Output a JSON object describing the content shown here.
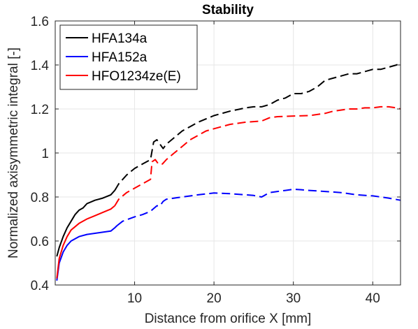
{
  "chart_data": {
    "type": "line",
    "title": "Stability",
    "xlabel": "Distance from orifice X [mm]",
    "ylabel": "Normalized axisymmetric integral [-]",
    "xlim": [
      0,
      43.5
    ],
    "ylim": [
      0.4,
      1.6
    ],
    "xticks": [
      10,
      20,
      30,
      40
    ],
    "yticks": [
      0.4,
      0.6,
      0.8,
      1,
      1.2,
      1.4,
      1.6
    ],
    "xtick_labels": [
      "10",
      "20",
      "30",
      "40"
    ],
    "ytick_labels": [
      "0.4",
      "0.6",
      "0.8",
      "1",
      "1.2",
      "1.4",
      "1.6"
    ],
    "grid": true,
    "legend_position": "top-left",
    "series": [
      {
        "name": "HFA134a",
        "color": "#000000",
        "solid": [
          [
            0.2,
            0.53
          ],
          [
            0.5,
            0.57
          ],
          [
            1,
            0.62
          ],
          [
            1.5,
            0.66
          ],
          [
            2,
            0.69
          ],
          [
            2.5,
            0.72
          ],
          [
            3,
            0.74
          ],
          [
            3.5,
            0.75
          ],
          [
            4,
            0.77
          ],
          [
            5,
            0.785
          ],
          [
            6,
            0.795
          ],
          [
            7,
            0.81
          ],
          [
            7.5,
            0.83
          ]
        ],
        "dashed": [
          [
            7.5,
            0.83
          ],
          [
            8,
            0.86
          ],
          [
            9,
            0.9
          ],
          [
            10,
            0.93
          ],
          [
            11,
            0.95
          ],
          [
            12,
            0.97
          ],
          [
            12.4,
            1.05
          ],
          [
            12.8,
            1.06
          ],
          [
            13.2,
            1.04
          ],
          [
            13.6,
            1.02
          ],
          [
            14,
            1.04
          ],
          [
            15,
            1.07
          ],
          [
            16,
            1.1
          ],
          [
            17,
            1.12
          ],
          [
            18,
            1.14
          ],
          [
            20,
            1.17
          ],
          [
            22,
            1.19
          ],
          [
            24,
            1.205
          ],
          [
            25,
            1.21
          ],
          [
            26,
            1.21
          ],
          [
            27,
            1.22
          ],
          [
            28,
            1.24
          ],
          [
            29,
            1.25
          ],
          [
            30,
            1.27
          ],
          [
            31,
            1.27
          ],
          [
            32,
            1.28
          ],
          [
            33,
            1.3
          ],
          [
            34,
            1.33
          ],
          [
            35,
            1.34
          ],
          [
            36,
            1.35
          ],
          [
            37,
            1.36
          ],
          [
            38,
            1.36
          ],
          [
            39,
            1.37
          ],
          [
            40,
            1.38
          ],
          [
            41,
            1.38
          ],
          [
            42,
            1.39
          ],
          [
            43,
            1.4
          ],
          [
            43.5,
            1.41
          ]
        ]
      },
      {
        "name": "HFA152a",
        "color": "#0000ff",
        "solid": [
          [
            0.2,
            0.42
          ],
          [
            0.5,
            0.5
          ],
          [
            1,
            0.55
          ],
          [
            1.5,
            0.58
          ],
          [
            2,
            0.6
          ],
          [
            3,
            0.62
          ],
          [
            4,
            0.63
          ],
          [
            5,
            0.635
          ],
          [
            6,
            0.64
          ],
          [
            7,
            0.645
          ],
          [
            7.5,
            0.66
          ],
          [
            7.8,
            0.67
          ]
        ],
        "dashed": [
          [
            7.8,
            0.67
          ],
          [
            8.5,
            0.69
          ],
          [
            10,
            0.71
          ],
          [
            11,
            0.72
          ],
          [
            12,
            0.735
          ],
          [
            12.8,
            0.76
          ],
          [
            13.2,
            0.76
          ],
          [
            13.6,
            0.78
          ],
          [
            14,
            0.79
          ],
          [
            15,
            0.795
          ],
          [
            16,
            0.8
          ],
          [
            18,
            0.81
          ],
          [
            20,
            0.818
          ],
          [
            22,
            0.815
          ],
          [
            24,
            0.81
          ],
          [
            25,
            0.807
          ],
          [
            26,
            0.8
          ],
          [
            27,
            0.82
          ],
          [
            28,
            0.825
          ],
          [
            29,
            0.83
          ],
          [
            30,
            0.835
          ],
          [
            31,
            0.833
          ],
          [
            32,
            0.83
          ],
          [
            34,
            0.825
          ],
          [
            36,
            0.82
          ],
          [
            38,
            0.81
          ],
          [
            40,
            0.805
          ],
          [
            42,
            0.795
          ],
          [
            43.5,
            0.785
          ]
        ]
      },
      {
        "name": "HFO1234ze(E)",
        "color": "#ff0000",
        "solid": [
          [
            0.2,
            0.43
          ],
          [
            0.5,
            0.52
          ],
          [
            1,
            0.58
          ],
          [
            1.5,
            0.62
          ],
          [
            2,
            0.65
          ],
          [
            3,
            0.68
          ],
          [
            4,
            0.7
          ],
          [
            5,
            0.715
          ],
          [
            6,
            0.73
          ],
          [
            7,
            0.745
          ],
          [
            7.5,
            0.76
          ]
        ],
        "dashed": [
          [
            7.5,
            0.76
          ],
          [
            8,
            0.79
          ],
          [
            9,
            0.82
          ],
          [
            10,
            0.84
          ],
          [
            11,
            0.86
          ],
          [
            12,
            0.88
          ],
          [
            12.2,
            0.96
          ],
          [
            12.6,
            0.97
          ],
          [
            13,
            0.95
          ],
          [
            13.5,
            0.95
          ],
          [
            14,
            0.97
          ],
          [
            15,
            1.0
          ],
          [
            16,
            1.03
          ],
          [
            17,
            1.06
          ],
          [
            18,
            1.08
          ],
          [
            19,
            1.1
          ],
          [
            20,
            1.11
          ],
          [
            21,
            1.12
          ],
          [
            22,
            1.13
          ],
          [
            24,
            1.14
          ],
          [
            26,
            1.145
          ],
          [
            27,
            1.16
          ],
          [
            28,
            1.165
          ],
          [
            30,
            1.168
          ],
          [
            32,
            1.17
          ],
          [
            34,
            1.18
          ],
          [
            35,
            1.19
          ],
          [
            36,
            1.195
          ],
          [
            37,
            1.2
          ],
          [
            38,
            1.2
          ],
          [
            39,
            1.205
          ],
          [
            40,
            1.205
          ],
          [
            41,
            1.21
          ],
          [
            42,
            1.21
          ],
          [
            43,
            1.205
          ],
          [
            43.5,
            1.2
          ]
        ]
      }
    ]
  }
}
